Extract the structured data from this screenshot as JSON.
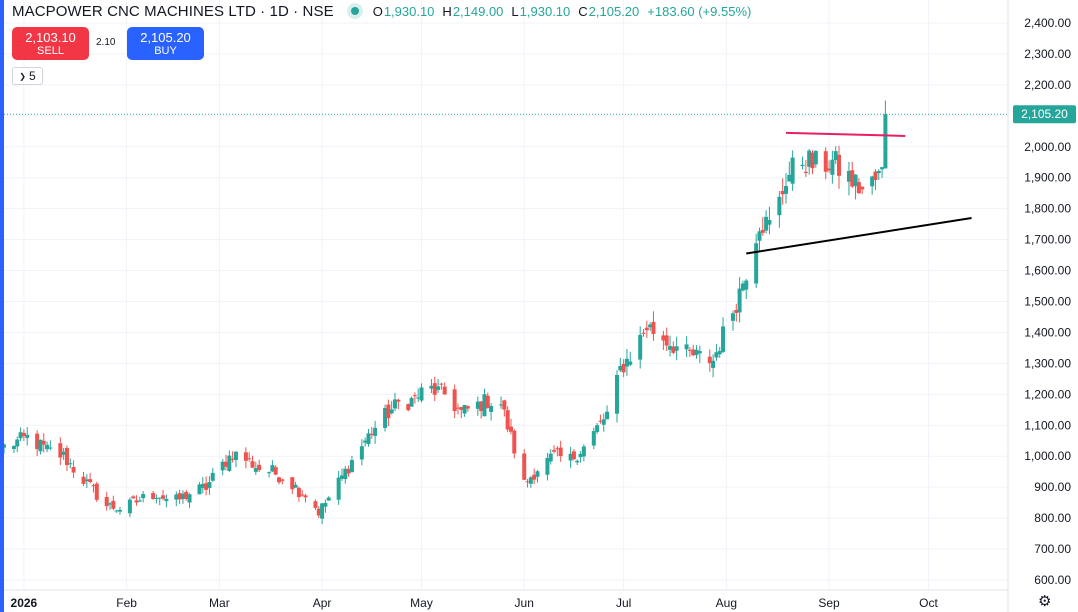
{
  "header": {
    "title": "MACPOWER CNC MACHINES LTD · 1D · NSE",
    "ohlc": {
      "o_label": "O",
      "o_value": "1,930.10",
      "h_label": "H",
      "h_value": "2,149.00",
      "l_label": "L",
      "l_value": "1,930.10",
      "c_label": "C",
      "c_value": "2,105.20",
      "change": "+183.60 (+9.55%)"
    }
  },
  "trade": {
    "sell_price": "2,103.10",
    "sell_label": "SELL",
    "spread": "2.10",
    "buy_price": "2,105.20",
    "buy_label": "BUY"
  },
  "indicator_badge": "5",
  "icons": {
    "live": "live-dot-icon",
    "collapse": "chevron-down-icon",
    "settings": "gear-icon"
  },
  "colors": {
    "up": "#26a69a",
    "down": "#ef5350",
    "accent": "#2962ff",
    "trendline_red": "#e91e63",
    "trendline_black": "#000000"
  },
  "chart_data": {
    "type": "candlestick",
    "symbol": "MACPOWER CNC MACHINES LTD",
    "interval": "1D",
    "exchange": "NSE",
    "grid": true,
    "y_axis": {
      "side": "right",
      "range": [
        600,
        2400
      ],
      "ticks": [
        "600.00",
        "700.00",
        "800.00",
        "900.00",
        "1,000.00",
        "1,100.00",
        "1,200.00",
        "1,300.00",
        "1,400.00",
        "1,500.00",
        "1,600.00",
        "1,700.00",
        "1,800.00",
        "1,900.00",
        "2,000.00",
        "2,100.00",
        "2,200.00",
        "2,300.00",
        "2,400.00"
      ],
      "tick_values": [
        600,
        700,
        800,
        900,
        1000,
        1100,
        1200,
        1300,
        1400,
        1500,
        1600,
        1700,
        1800,
        1900,
        2000,
        2100,
        2200,
        2300,
        2400
      ]
    },
    "x_axis": {
      "range": [
        "2025-12-26",
        "2026-10-25"
      ],
      "ticks": [
        {
          "label": "2026",
          "date": "2026-01-01",
          "bold": true
        },
        {
          "label": "Feb",
          "date": "2026-02-01"
        },
        {
          "label": "Mar",
          "date": "2026-03-01"
        },
        {
          "label": "Apr",
          "date": "2026-04-01"
        },
        {
          "label": "May",
          "date": "2026-05-01"
        },
        {
          "label": "Jun",
          "date": "2026-06-01"
        },
        {
          "label": "Jul",
          "date": "2026-07-01"
        },
        {
          "label": "Aug",
          "date": "2026-08-01"
        },
        {
          "label": "Sep",
          "date": "2026-09-01"
        },
        {
          "label": "Oct",
          "date": "2026-10-01"
        }
      ]
    },
    "last_price": {
      "value": 2105.2,
      "label": "2,105.20"
    },
    "path": [
      [
        "2025-12-26",
        1030
      ],
      [
        "2026-01-02",
        1060
      ],
      [
        "2026-01-08",
        1020
      ],
      [
        "2026-01-13",
        1000
      ],
      [
        "2026-01-16",
        960
      ],
      [
        "2026-01-21",
        900
      ],
      [
        "2026-01-26",
        840
      ],
      [
        "2026-01-31",
        830
      ],
      [
        "2026-02-05",
        860
      ],
      [
        "2026-02-10",
        880
      ],
      [
        "2026-02-15",
        850
      ],
      [
        "2026-02-20",
        880
      ],
      [
        "2026-02-25",
        900
      ],
      [
        "2026-03-01",
        960
      ],
      [
        "2026-03-05",
        1010
      ],
      [
        "2026-03-09",
        990
      ],
      [
        "2026-03-13",
        960
      ],
      [
        "2026-03-17",
        950
      ],
      [
        "2026-03-22",
        920
      ],
      [
        "2026-03-25",
        890
      ],
      [
        "2026-03-28",
        870
      ],
      [
        "2026-03-31",
        820
      ],
      [
        "2026-04-04",
        880
      ],
      [
        "2026-04-08",
        950
      ],
      [
        "2026-04-12",
        1020
      ],
      [
        "2026-04-16",
        1080
      ],
      [
        "2026-04-20",
        1130
      ],
      [
        "2026-04-24",
        1170
      ],
      [
        "2026-04-28",
        1180
      ],
      [
        "2026-05-03",
        1220
      ],
      [
        "2026-05-08",
        1200
      ],
      [
        "2026-05-13",
        1140
      ],
      [
        "2026-05-17",
        1160
      ],
      [
        "2026-05-21",
        1180
      ],
      [
        "2026-05-25",
        1170
      ],
      [
        "2026-05-28",
        1060
      ],
      [
        "2026-06-01",
        910
      ],
      [
        "2026-06-05",
        960
      ],
      [
        "2026-06-10",
        1000
      ],
      [
        "2026-06-15",
        990
      ],
      [
        "2026-06-20",
        1040
      ],
      [
        "2026-06-23",
        1090
      ],
      [
        "2026-06-27",
        1150
      ],
      [
        "2026-06-30",
        1280
      ],
      [
        "2026-07-04",
        1340
      ],
      [
        "2026-07-08",
        1420
      ],
      [
        "2026-07-12",
        1390
      ],
      [
        "2026-07-16",
        1360
      ],
      [
        "2026-07-20",
        1330
      ],
      [
        "2026-07-24",
        1320
      ],
      [
        "2026-07-28",
        1310
      ],
      [
        "2026-08-01",
        1420
      ],
      [
        "2026-08-04",
        1500
      ],
      [
        "2026-08-07",
        1600
      ],
      [
        "2026-08-11",
        1760
      ],
      [
        "2026-08-15",
        1740
      ],
      [
        "2026-08-19",
        1900
      ],
      [
        "2026-08-24",
        1960
      ],
      [
        "2026-08-28",
        1940
      ],
      [
        "2026-09-02",
        1950
      ],
      [
        "2026-09-07",
        1900
      ],
      [
        "2026-09-11",
        1860
      ],
      [
        "2026-09-15",
        1890
      ],
      [
        "2026-09-18",
        1930
      ],
      [
        "2026-09-19",
        2105
      ]
    ],
    "annotations": [
      {
        "type": "trendline",
        "color": "#e91e63",
        "from": [
          "2026-08-19",
          2045
        ],
        "to": [
          "2026-09-24",
          2035
        ]
      },
      {
        "type": "trendline",
        "color": "#000000",
        "from": [
          "2026-08-07",
          1655
        ],
        "to": [
          "2026-10-14",
          1770
        ]
      }
    ]
  }
}
